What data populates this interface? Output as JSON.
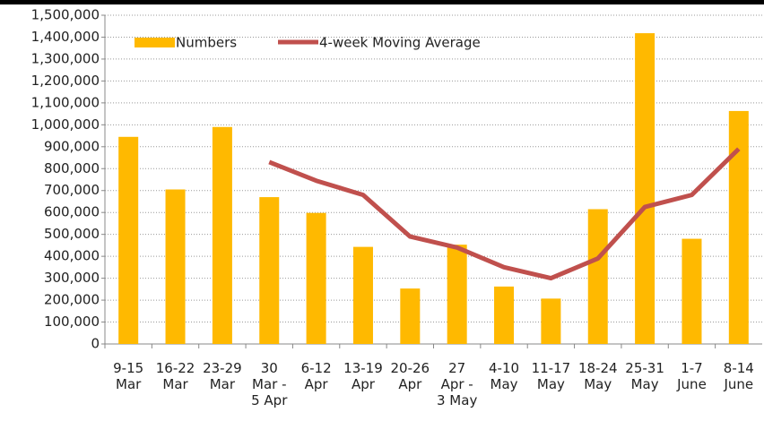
{
  "chart_data": {
    "type": "bar-line",
    "categories": [
      [
        "9-15",
        "Mar"
      ],
      [
        "16-22",
        "Mar"
      ],
      [
        "23-29",
        "Mar"
      ],
      [
        "30",
        "Mar -",
        "5 Apr"
      ],
      [
        "6-12",
        "Apr"
      ],
      [
        "13-19",
        "Apr"
      ],
      [
        "20-26",
        "Apr"
      ],
      [
        "27",
        "Apr -",
        "3 May"
      ],
      [
        "4-10",
        "May"
      ],
      [
        "11-17",
        "May"
      ],
      [
        "18-24",
        "May"
      ],
      [
        "25-31",
        "May"
      ],
      [
        "1-7",
        "June"
      ],
      [
        "8-14",
        "June"
      ]
    ],
    "series": [
      {
        "name": "Numbers",
        "type": "bar",
        "color": "#ffb900",
        "values": [
          945000,
          705000,
          990000,
          670000,
          598000,
          443000,
          253000,
          453000,
          262000,
          207000,
          615000,
          1418000,
          480000,
          1063000
        ]
      },
      {
        "name": "4-week Moving Average",
        "type": "line",
        "color": "#c0504d",
        "values": [
          null,
          null,
          null,
          830000,
          745000,
          680000,
          490000,
          440000,
          350000,
          300000,
          390000,
          625000,
          680000,
          890000
        ]
      }
    ],
    "ylim": [
      0,
      1500000
    ],
    "yticks": [
      0,
      {
        "value": 100000,
        "label": "100,000"
      },
      {
        "value": 200000,
        "label": "200,000"
      },
      {
        "value": 300000,
        "label": "300,000"
      },
      {
        "value": 400000,
        "label": "400,000"
      },
      {
        "value": 500000,
        "label": "500,000"
      },
      {
        "value": 600000,
        "label": "600,000"
      },
      {
        "value": 700000,
        "label": "700,000"
      },
      {
        "value": 800000,
        "label": "800,000"
      },
      {
        "value": 900000,
        "label": "900,000"
      },
      {
        "value": 1000000,
        "label": "1,000,000"
      },
      {
        "value": 1100000,
        "label": "1,100,000"
      },
      {
        "value": 1200000,
        "label": "1,200,000"
      },
      {
        "value": 1300000,
        "label": "1,300,000"
      },
      {
        "value": 1400000,
        "label": "1,400,000"
      },
      {
        "value": 1500000,
        "label": "1,500,000"
      }
    ],
    "grid": true,
    "legend": "top"
  }
}
